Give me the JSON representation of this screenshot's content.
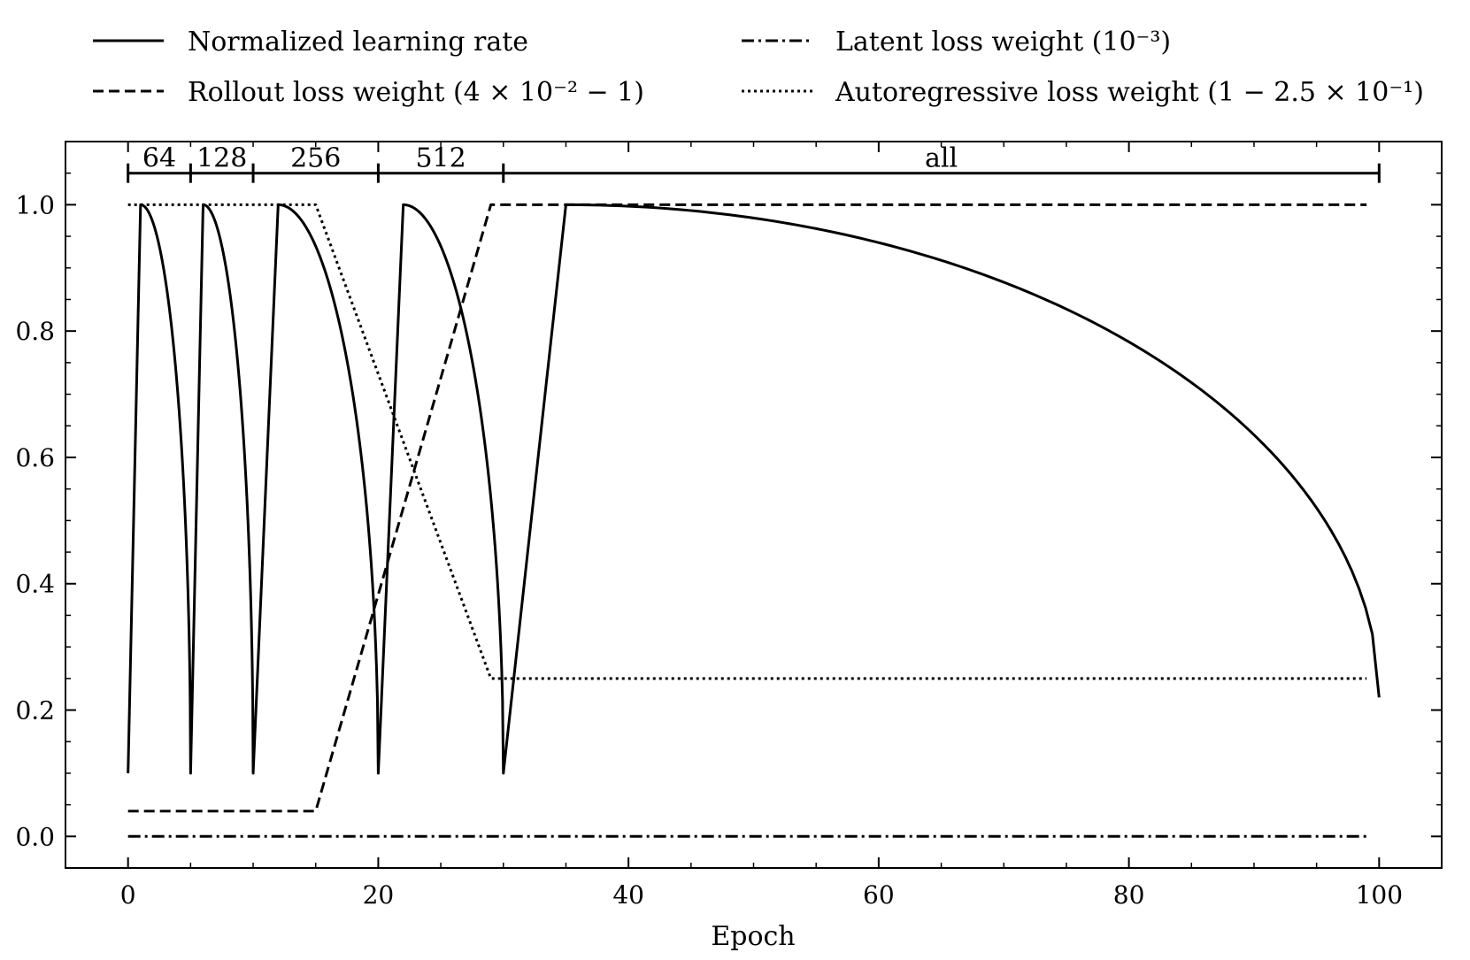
{
  "chart_data": {
    "type": "line",
    "title": "",
    "xlabel": "Epoch",
    "ylabel": "",
    "xlim": [
      -5,
      105
    ],
    "ylim": [
      -0.05,
      1.1
    ],
    "xticks": [
      0,
      20,
      40,
      60,
      80,
      100
    ],
    "xtick_labels": [
      "0",
      "20",
      "40",
      "60",
      "80",
      "100"
    ],
    "yticks": [
      0.0,
      0.2,
      0.4,
      0.6,
      0.8,
      1.0
    ],
    "ytick_labels": [
      "0.0",
      "0.2",
      "0.4",
      "0.6",
      "0.8",
      "1.0"
    ],
    "grid": false,
    "legend_position": "top",
    "legend": [
      {
        "key": "lr",
        "text": "Normalized learning rate",
        "style": "solid"
      },
      {
        "key": "latent",
        "text": "Latent loss weight (10⁻³)",
        "style": "dashdot"
      },
      {
        "key": "rollout",
        "text": "Rollout loss weight (4 × 10⁻² − 1)",
        "style": "dashed"
      },
      {
        "key": "autoreg",
        "text": "Autoregressive loss weight (1 − 2.5 × 10⁻¹)",
        "style": "dotted"
      }
    ],
    "segments": [
      {
        "label": "64",
        "start": 0,
        "end": 5
      },
      {
        "label": "128",
        "start": 5,
        "end": 10
      },
      {
        "label": "256",
        "start": 10,
        "end": 20
      },
      {
        "label": "512",
        "start": 20,
        "end": 30
      },
      {
        "label": "all",
        "start": 30,
        "end": 100
      }
    ],
    "segment_bar_y": 1.05,
    "series": [
      {
        "name": "Normalized learning rate",
        "key": "lr",
        "style": "solid",
        "kind": "warmup_cosine",
        "cycles": [
          {
            "start": 0,
            "warmup_end": 1,
            "end": 5
          },
          {
            "start": 5,
            "warmup_end": 6,
            "end": 10
          },
          {
            "start": 10,
            "warmup_end": 12,
            "end": 20
          },
          {
            "start": 20,
            "warmup_end": 22,
            "end": 30
          },
          {
            "start": 30,
            "warmup_end": 35,
            "end": 100
          }
        ],
        "min_value": 0.1,
        "max_value": 1.0,
        "final_value": 0.22
      },
      {
        "name": "Rollout loss weight",
        "key": "rollout",
        "style": "dashed",
        "points": [
          [
            0,
            0.04
          ],
          [
            15,
            0.04
          ],
          [
            29,
            1.0
          ],
          [
            99,
            1.0
          ]
        ]
      },
      {
        "name": "Autoregressive loss weight",
        "key": "autoreg",
        "style": "dotted",
        "points": [
          [
            0,
            1.0
          ],
          [
            15,
            1.0
          ],
          [
            29,
            0.25
          ],
          [
            99,
            0.25
          ]
        ]
      },
      {
        "name": "Latent loss weight",
        "key": "latent",
        "style": "dashdot",
        "points": [
          [
            0,
            0.0
          ],
          [
            99,
            0.0
          ]
        ]
      }
    ]
  }
}
